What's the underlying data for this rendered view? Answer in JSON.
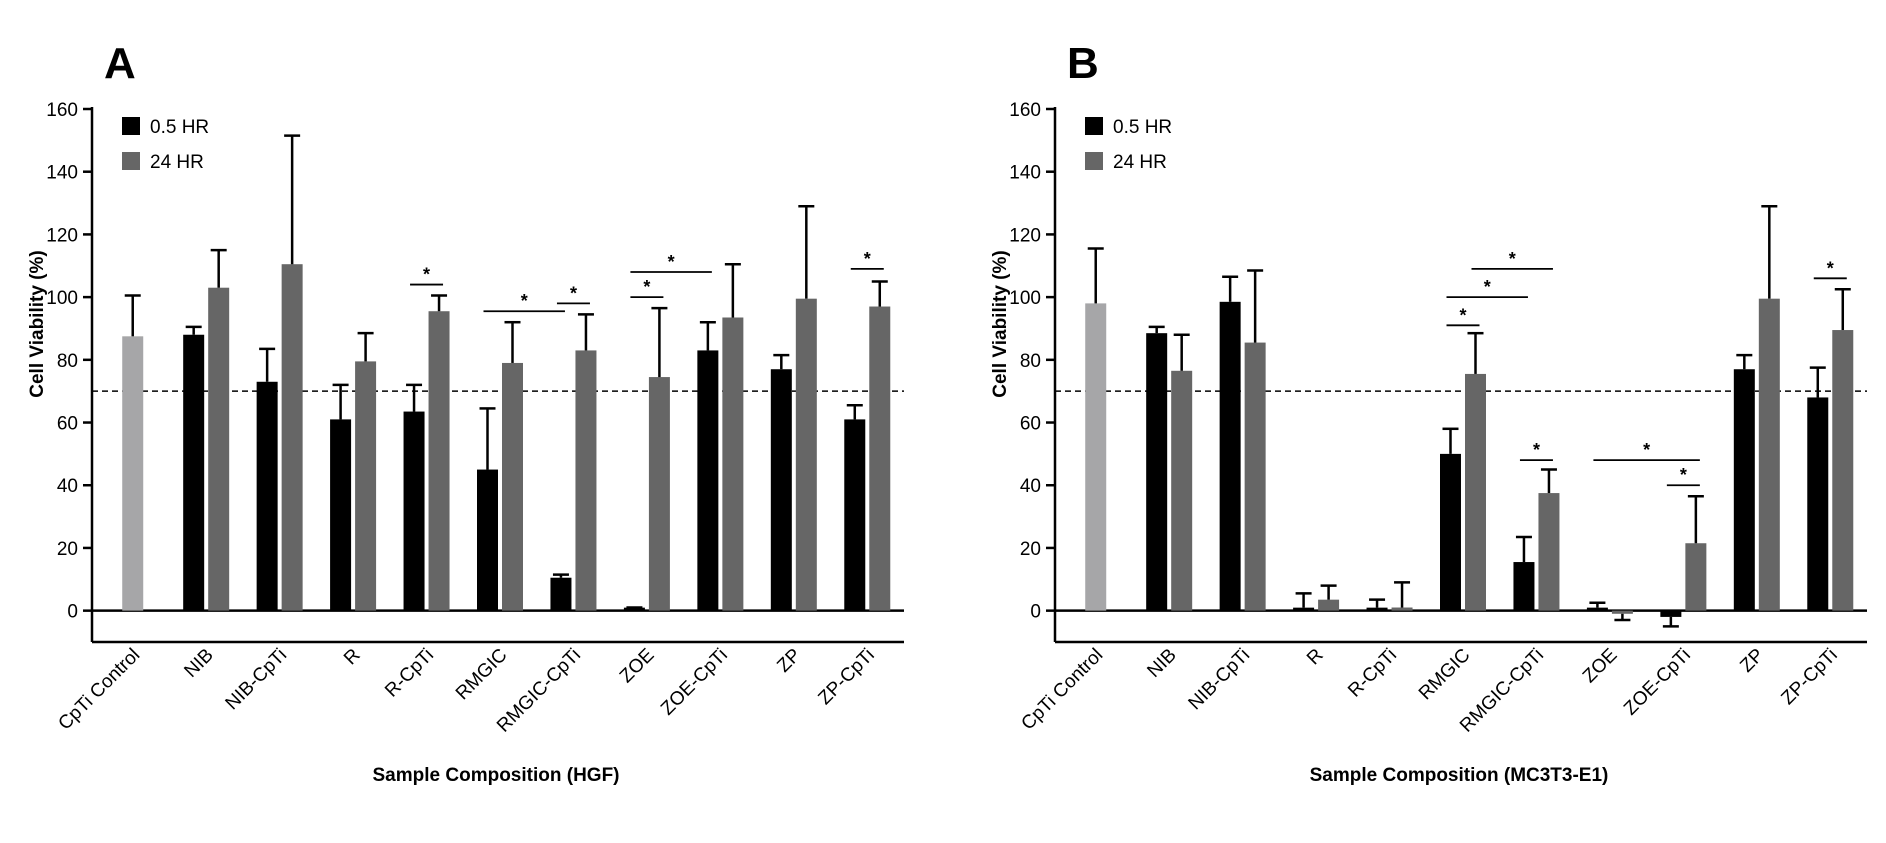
{
  "figure_labels": [
    "A",
    "B"
  ],
  "colors": {
    "control": "#a6a6a8",
    "series_0_5": "#000000",
    "series_24": "#666666",
    "axis": "#000000"
  },
  "chart_data": [
    {
      "type": "bar",
      "panel": "A",
      "xlabel": "Sample Composition (HGF)",
      "ylabel": "Cell Viability (%)",
      "ylim": [
        -10,
        160
      ],
      "yticks": [
        0,
        20,
        40,
        60,
        80,
        100,
        120,
        140,
        160
      ],
      "reference_line": 70,
      "legend": {
        "position": "top-left",
        "entries": [
          "0.5 HR",
          "24 HR"
        ]
      },
      "categories": [
        "CpTi Control",
        "NIB",
        "NIB-CpTi",
        "R",
        "R-CpTi",
        "RMGIC",
        "RMGIC-CpTi",
        "ZOE",
        "ZOE-CpTi",
        "ZP",
        "ZP-CpTi"
      ],
      "control": {
        "category": "CpTi Control",
        "value": 87.5,
        "error": 13
      },
      "series": [
        {
          "name": "0.5 HR",
          "values": [
            null,
            88,
            73,
            61,
            63.5,
            45,
            10.5,
            0,
            83,
            77,
            61
          ],
          "errors": [
            null,
            2.5,
            10.5,
            11,
            8.5,
            19.5,
            1,
            1,
            9,
            4.5,
            4.5
          ]
        },
        {
          "name": "24 HR",
          "values": [
            null,
            103,
            110.5,
            79.5,
            95.5,
            79,
            83,
            74.5,
            93.5,
            99.5,
            97
          ],
          "errors": [
            null,
            12,
            41,
            9,
            5,
            13,
            11.5,
            22,
            17,
            29.5,
            8
          ]
        }
      ],
      "significance": [
        {
          "label": "*",
          "from": [
            "R-CpTi",
            "0.5 HR"
          ],
          "to": [
            "R-CpTi",
            "24 HR"
          ],
          "y": 104
        },
        {
          "label": "*",
          "from": [
            "RMGIC",
            "0.5 HR"
          ],
          "to": [
            "RMGIC-CpTi",
            "0.5 HR"
          ],
          "y": 95.5
        },
        {
          "label": "*",
          "from": [
            "RMGIC-CpTi",
            "0.5 HR"
          ],
          "to": [
            "RMGIC-CpTi",
            "24 HR"
          ],
          "y": 98
        },
        {
          "label": "*",
          "from": [
            "ZOE",
            "0.5 HR"
          ],
          "to": [
            "ZOE",
            "24 HR"
          ],
          "y": 100
        },
        {
          "label": "*",
          "from": [
            "ZOE",
            "0.5 HR"
          ],
          "to": [
            "ZOE-CpTi",
            "0.5 HR"
          ],
          "y": 108
        },
        {
          "label": "*",
          "from": [
            "ZP-CpTi",
            "0.5 HR"
          ],
          "to": [
            "ZP-CpTi",
            "24 HR"
          ],
          "y": 109
        }
      ]
    },
    {
      "type": "bar",
      "panel": "B",
      "xlabel": "Sample Composition (MC3T3-E1)",
      "ylabel": "Cell Viability (%)",
      "ylim": [
        -10,
        160
      ],
      "yticks": [
        0,
        20,
        40,
        60,
        80,
        100,
        120,
        140,
        160
      ],
      "reference_line": 70,
      "legend": {
        "position": "top-left",
        "entries": [
          "0.5 HR",
          "24 HR"
        ]
      },
      "categories": [
        "CpTi Control",
        "NIB",
        "NIB-CpTi",
        "R",
        "R-CpTi",
        "RMGIC",
        "RMGIC-CpTi",
        "ZOE",
        "ZOE-CpTi",
        "ZP",
        "ZP-CpTi"
      ],
      "control": {
        "category": "CpTi Control",
        "value": 98,
        "error": 17.5
      },
      "series": [
        {
          "name": "0.5 HR",
          "values": [
            null,
            88.5,
            98.5,
            0,
            0.5,
            50,
            15.5,
            0,
            -2,
            77,
            68
          ],
          "errors": [
            null,
            2,
            8,
            5.5,
            3,
            8,
            8,
            2.5,
            3,
            4.5,
            9.5
          ]
        },
        {
          "name": "24 HR",
          "values": [
            null,
            76.5,
            85.5,
            3.5,
            1,
            75.5,
            37.5,
            -1,
            21.5,
            99.5,
            89.5
          ],
          "errors": [
            null,
            11.5,
            23,
            4.5,
            8,
            13,
            7.5,
            2,
            15,
            29.5,
            13
          ]
        }
      ],
      "significance": [
        {
          "label": "*",
          "from": [
            "RMGIC",
            "0.5 HR"
          ],
          "to": [
            "RMGIC",
            "24 HR"
          ],
          "y": 91
        },
        {
          "label": "*",
          "from": [
            "RMGIC",
            "0.5 HR"
          ],
          "to": [
            "RMGIC-CpTi",
            "0.5 HR"
          ],
          "y": 100
        },
        {
          "label": "*",
          "from": [
            "RMGIC",
            "24 HR"
          ],
          "to": [
            "RMGIC-CpTi",
            "24 HR"
          ],
          "y": 109
        },
        {
          "label": "*",
          "from": [
            "RMGIC-CpTi",
            "0.5 HR"
          ],
          "to": [
            "RMGIC-CpTi",
            "24 HR"
          ],
          "y": 48
        },
        {
          "label": "*",
          "from": [
            "ZOE",
            "0.5 HR"
          ],
          "to": [
            "ZOE-CpTi",
            "24 HR"
          ],
          "y": 48
        },
        {
          "label": "*",
          "from": [
            "ZOE-CpTi",
            "0.5 HR"
          ],
          "to": [
            "ZOE-CpTi",
            "24 HR"
          ],
          "y": 40
        },
        {
          "label": "*",
          "from": [
            "ZP-CpTi",
            "0.5 HR"
          ],
          "to": [
            "ZP-CpTi",
            "24 HR"
          ],
          "y": 106
        }
      ]
    }
  ]
}
